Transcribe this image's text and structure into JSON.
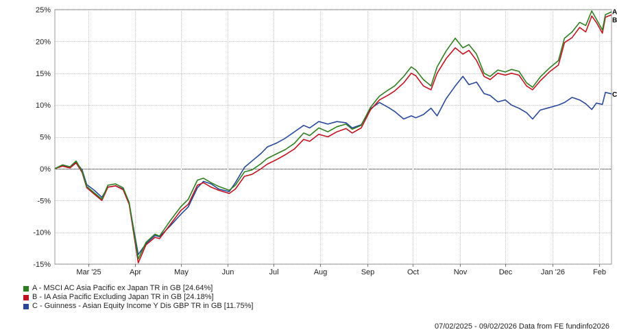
{
  "chart_data": {
    "type": "line",
    "y_ticks": [
      "25%",
      "20%",
      "15%",
      "10%",
      "5%",
      "0%",
      "-5%",
      "-10%",
      "-15%"
    ],
    "y_tick_values": [
      25,
      20,
      15,
      10,
      5,
      0,
      -5,
      -10,
      -15
    ],
    "ylim": [
      -15,
      25
    ],
    "x_ticks": [
      "Mar '25",
      "Apr",
      "May",
      "Jun",
      "Jul",
      "Aug",
      "Sep",
      "Oct",
      "Nov",
      "Dec",
      "Jan '26",
      "Feb"
    ],
    "x_tick_dates": [
      "2025-03-01",
      "2025-04-01",
      "2025-05-01",
      "2025-06-01",
      "2025-07-01",
      "2025-08-01",
      "2025-09-01",
      "2025-10-01",
      "2025-11-01",
      "2025-12-01",
      "2026-01-01",
      "2026-02-01"
    ],
    "xlim": [
      "2025-02-07",
      "2026-02-09"
    ],
    "grid": true,
    "legend_placement": "bottom-left",
    "series": [
      {
        "name": "A - MSCI AC Asia Pacific ex Japan TR in GB [24.64%]",
        "end_label": "A",
        "color": "#2e7d1f",
        "points": [
          [
            "2025-02-07",
            0
          ],
          [
            "2025-02-12",
            0.6
          ],
          [
            "2025-02-17",
            0.3
          ],
          [
            "2025-02-21",
            1.2
          ],
          [
            "2025-02-25",
            -0.4
          ],
          [
            "2025-02-28",
            -2.8
          ],
          [
            "2025-03-05",
            -3.8
          ],
          [
            "2025-03-10",
            -4.8
          ],
          [
            "2025-03-14",
            -2.6
          ],
          [
            "2025-03-19",
            -2.4
          ],
          [
            "2025-03-24",
            -3.0
          ],
          [
            "2025-03-28",
            -5.3
          ],
          [
            "2025-04-03",
            -14.2
          ],
          [
            "2025-04-08",
            -11.6
          ],
          [
            "2025-04-14",
            -10.3
          ],
          [
            "2025-04-17",
            -10.6
          ],
          [
            "2025-04-24",
            -8.2
          ],
          [
            "2025-05-01",
            -6.0
          ],
          [
            "2025-05-06",
            -4.8
          ],
          [
            "2025-05-12",
            -1.8
          ],
          [
            "2025-05-16",
            -1.5
          ],
          [
            "2025-05-21",
            -2.2
          ],
          [
            "2025-05-26",
            -2.8
          ],
          [
            "2025-06-02",
            -3.4
          ],
          [
            "2025-06-06",
            -2.6
          ],
          [
            "2025-06-12",
            -0.5
          ],
          [
            "2025-06-17",
            -0.2
          ],
          [
            "2025-06-23",
            0.8
          ],
          [
            "2025-06-27",
            1.6
          ],
          [
            "2025-07-03",
            2.3
          ],
          [
            "2025-07-09",
            3.0
          ],
          [
            "2025-07-15",
            4.0
          ],
          [
            "2025-07-21",
            5.6
          ],
          [
            "2025-07-25",
            5.2
          ],
          [
            "2025-07-31",
            6.4
          ],
          [
            "2025-08-06",
            5.8
          ],
          [
            "2025-08-12",
            6.6
          ],
          [
            "2025-08-18",
            7.0
          ],
          [
            "2025-08-22",
            6.2
          ],
          [
            "2025-08-28",
            6.8
          ],
          [
            "2025-09-03",
            9.6
          ],
          [
            "2025-09-09",
            11.4
          ],
          [
            "2025-09-15",
            12.4
          ],
          [
            "2025-09-19",
            13.0
          ],
          [
            "2025-09-25",
            14.5
          ],
          [
            "2025-09-30",
            16.0
          ],
          [
            "2025-10-03",
            15.5
          ],
          [
            "2025-10-08",
            14.0
          ],
          [
            "2025-10-13",
            13.0
          ],
          [
            "2025-10-17",
            16.0
          ],
          [
            "2025-10-23",
            18.5
          ],
          [
            "2025-10-29",
            20.5
          ],
          [
            "2025-11-03",
            19.0
          ],
          [
            "2025-11-07",
            19.5
          ],
          [
            "2025-11-12",
            18.0
          ],
          [
            "2025-11-17",
            15.0
          ],
          [
            "2025-11-21",
            14.5
          ],
          [
            "2025-11-26",
            15.5
          ],
          [
            "2025-12-01",
            15.2
          ],
          [
            "2025-12-05",
            15.6
          ],
          [
            "2025-12-10",
            15.3
          ],
          [
            "2025-12-15",
            13.5
          ],
          [
            "2025-12-19",
            12.8
          ],
          [
            "2025-12-24",
            14.4
          ],
          [
            "2025-12-30",
            15.8
          ],
          [
            "2026-01-05",
            17.0
          ],
          [
            "2026-01-09",
            20.5
          ],
          [
            "2026-01-14",
            21.5
          ],
          [
            "2026-01-19",
            23.0
          ],
          [
            "2026-01-23",
            22.5
          ],
          [
            "2026-01-27",
            24.8
          ],
          [
            "2026-01-30",
            23.5
          ],
          [
            "2026-02-03",
            21.8
          ],
          [
            "2026-02-05",
            24.2
          ],
          [
            "2026-02-09",
            24.64
          ]
        ]
      },
      {
        "name": "B - IA Asia Pacific Excluding Japan TR in GB [24.18%]",
        "end_label": "B",
        "color": "#c1121f",
        "points": [
          [
            "2025-02-07",
            0
          ],
          [
            "2025-02-12",
            0.4
          ],
          [
            "2025-02-17",
            0.1
          ],
          [
            "2025-02-21",
            0.9
          ],
          [
            "2025-02-25",
            -0.6
          ],
          [
            "2025-02-28",
            -3.0
          ],
          [
            "2025-03-05",
            -4.0
          ],
          [
            "2025-03-10",
            -5.0
          ],
          [
            "2025-03-14",
            -2.9
          ],
          [
            "2025-03-19",
            -2.7
          ],
          [
            "2025-03-24",
            -3.3
          ],
          [
            "2025-03-28",
            -5.6
          ],
          [
            "2025-04-03",
            -14.8
          ],
          [
            "2025-04-08",
            -12.0
          ],
          [
            "2025-04-14",
            -10.8
          ],
          [
            "2025-04-17",
            -11.0
          ],
          [
            "2025-04-24",
            -8.8
          ],
          [
            "2025-05-01",
            -6.6
          ],
          [
            "2025-05-06",
            -5.6
          ],
          [
            "2025-05-12",
            -2.6
          ],
          [
            "2025-05-16",
            -2.2
          ],
          [
            "2025-05-21",
            -2.9
          ],
          [
            "2025-05-26",
            -3.4
          ],
          [
            "2025-06-02",
            -3.9
          ],
          [
            "2025-06-06",
            -3.2
          ],
          [
            "2025-06-12",
            -1.2
          ],
          [
            "2025-06-17",
            -0.9
          ],
          [
            "2025-06-23",
            0.0
          ],
          [
            "2025-06-27",
            0.7
          ],
          [
            "2025-07-03",
            1.4
          ],
          [
            "2025-07-09",
            2.2
          ],
          [
            "2025-07-15",
            3.1
          ],
          [
            "2025-07-21",
            4.6
          ],
          [
            "2025-07-25",
            4.3
          ],
          [
            "2025-07-31",
            5.4
          ],
          [
            "2025-08-06",
            5.0
          ],
          [
            "2025-08-12",
            5.8
          ],
          [
            "2025-08-18",
            6.3
          ],
          [
            "2025-08-22",
            5.6
          ],
          [
            "2025-08-28",
            6.4
          ],
          [
            "2025-09-03",
            9.2
          ],
          [
            "2025-09-09",
            10.8
          ],
          [
            "2025-09-15",
            11.6
          ],
          [
            "2025-09-19",
            12.2
          ],
          [
            "2025-09-25",
            13.5
          ],
          [
            "2025-09-30",
            15.0
          ],
          [
            "2025-10-03",
            14.6
          ],
          [
            "2025-10-08",
            13.0
          ],
          [
            "2025-10-13",
            12.4
          ],
          [
            "2025-10-17",
            15.0
          ],
          [
            "2025-10-23",
            17.3
          ],
          [
            "2025-10-29",
            19.0
          ],
          [
            "2025-11-03",
            18.0
          ],
          [
            "2025-11-07",
            18.6
          ],
          [
            "2025-11-12",
            17.0
          ],
          [
            "2025-11-17",
            14.5
          ],
          [
            "2025-11-21",
            14.0
          ],
          [
            "2025-11-26",
            15.0
          ],
          [
            "2025-12-01",
            14.7
          ],
          [
            "2025-12-05",
            15.0
          ],
          [
            "2025-12-10",
            14.7
          ],
          [
            "2025-12-15",
            13.0
          ],
          [
            "2025-12-19",
            12.4
          ],
          [
            "2025-12-24",
            13.8
          ],
          [
            "2025-12-30",
            15.2
          ],
          [
            "2026-01-05",
            16.3
          ],
          [
            "2026-01-09",
            19.8
          ],
          [
            "2026-01-14",
            20.6
          ],
          [
            "2026-01-19",
            22.2
          ],
          [
            "2026-01-23",
            21.5
          ],
          [
            "2026-01-27",
            24.0
          ],
          [
            "2026-01-30",
            23.0
          ],
          [
            "2026-02-03",
            21.3
          ],
          [
            "2026-02-05",
            23.8
          ],
          [
            "2026-02-09",
            24.18
          ]
        ]
      },
      {
        "name": "C - Guinness - Asian Equity Income Y Dis GBP TR in GB [11.75%]",
        "end_label": "C",
        "color": "#27479a",
        "points": [
          [
            "2025-02-07",
            0
          ],
          [
            "2025-02-12",
            0.5
          ],
          [
            "2025-02-17",
            0.2
          ],
          [
            "2025-02-21",
            1.0
          ],
          [
            "2025-02-25",
            -0.2
          ],
          [
            "2025-02-28",
            -2.5
          ],
          [
            "2025-03-05",
            -3.4
          ],
          [
            "2025-03-10",
            -4.5
          ],
          [
            "2025-03-14",
            -2.9
          ],
          [
            "2025-03-19",
            -2.7
          ],
          [
            "2025-03-24",
            -3.2
          ],
          [
            "2025-03-28",
            -5.5
          ],
          [
            "2025-04-03",
            -13.5
          ],
          [
            "2025-04-08",
            -11.8
          ],
          [
            "2025-04-14",
            -10.5
          ],
          [
            "2025-04-17",
            -10.7
          ],
          [
            "2025-04-24",
            -9.0
          ],
          [
            "2025-05-01",
            -7.2
          ],
          [
            "2025-05-06",
            -6.0
          ],
          [
            "2025-05-12",
            -3.0
          ],
          [
            "2025-05-16",
            -2.0
          ],
          [
            "2025-05-21",
            -2.4
          ],
          [
            "2025-05-26",
            -3.2
          ],
          [
            "2025-06-02",
            -3.6
          ],
          [
            "2025-06-06",
            -2.2
          ],
          [
            "2025-06-12",
            0.2
          ],
          [
            "2025-06-17",
            1.2
          ],
          [
            "2025-06-23",
            2.4
          ],
          [
            "2025-06-27",
            3.4
          ],
          [
            "2025-07-03",
            4.0
          ],
          [
            "2025-07-09",
            4.8
          ],
          [
            "2025-07-15",
            5.8
          ],
          [
            "2025-07-21",
            6.8
          ],
          [
            "2025-07-25",
            6.4
          ],
          [
            "2025-07-31",
            7.4
          ],
          [
            "2025-08-06",
            7.0
          ],
          [
            "2025-08-12",
            7.4
          ],
          [
            "2025-08-18",
            7.2
          ],
          [
            "2025-08-22",
            6.4
          ],
          [
            "2025-08-28",
            6.9
          ],
          [
            "2025-09-03",
            9.4
          ],
          [
            "2025-09-09",
            10.4
          ],
          [
            "2025-09-15",
            9.6
          ],
          [
            "2025-09-19",
            9.0
          ],
          [
            "2025-09-25",
            7.8
          ],
          [
            "2025-09-30",
            8.3
          ],
          [
            "2025-10-03",
            8.0
          ],
          [
            "2025-10-08",
            8.5
          ],
          [
            "2025-10-13",
            9.5
          ],
          [
            "2025-10-17",
            8.3
          ],
          [
            "2025-10-23",
            11.0
          ],
          [
            "2025-10-29",
            13.0
          ],
          [
            "2025-11-03",
            14.5
          ],
          [
            "2025-11-07",
            13.2
          ],
          [
            "2025-11-12",
            13.6
          ],
          [
            "2025-11-17",
            11.8
          ],
          [
            "2025-11-21",
            11.5
          ],
          [
            "2025-11-26",
            10.5
          ],
          [
            "2025-12-01",
            10.8
          ],
          [
            "2025-12-05",
            10.0
          ],
          [
            "2025-12-10",
            9.5
          ],
          [
            "2025-12-15",
            8.8
          ],
          [
            "2025-12-19",
            7.8
          ],
          [
            "2025-12-24",
            9.2
          ],
          [
            "2025-12-30",
            9.6
          ],
          [
            "2026-01-05",
            10.0
          ],
          [
            "2026-01-09",
            10.4
          ],
          [
            "2026-01-14",
            11.2
          ],
          [
            "2026-01-19",
            10.8
          ],
          [
            "2026-01-23",
            10.2
          ],
          [
            "2026-01-27",
            9.3
          ],
          [
            "2026-01-30",
            10.3
          ],
          [
            "2026-02-03",
            10.1
          ],
          [
            "2026-02-05",
            12.0
          ],
          [
            "2026-02-09",
            11.75
          ]
        ]
      }
    ]
  },
  "footer": "07/02/2025 - 09/02/2026 Data from FE fundinfo2026"
}
